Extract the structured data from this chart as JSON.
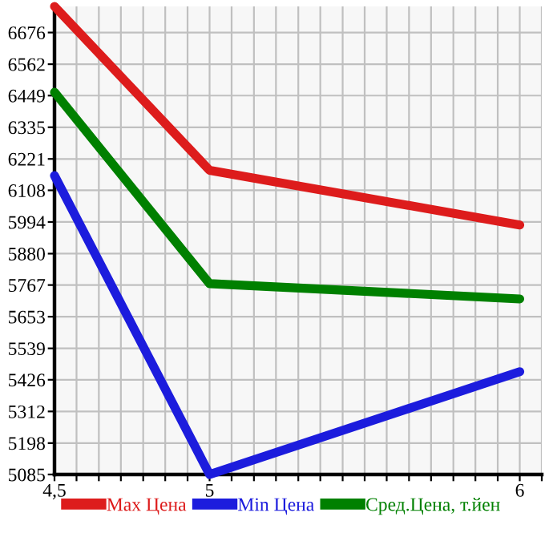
{
  "chart_data": {
    "type": "line",
    "x": [
      4.5,
      5,
      6
    ],
    "series": [
      {
        "name": "Max Цена",
        "color": "#dd1c1c",
        "values": [
          6770,
          6180,
          5983
        ]
      },
      {
        "name": "Min Цена",
        "color": "#1c1cdd",
        "values": [
          6161,
          5085,
          5455
        ]
      },
      {
        "name": "Сред.Цена, т.йен",
        "color": "#008000",
        "values": [
          6461,
          5772,
          5717
        ]
      }
    ],
    "xlim": [
      4.5,
      6.071
    ],
    "xticks": [
      {
        "value": 4.5,
        "label": "4,5"
      },
      {
        "value": 4.571,
        "label": null
      },
      {
        "value": 4.643,
        "label": null
      },
      {
        "value": 4.714,
        "label": null
      },
      {
        "value": 4.786,
        "label": null
      },
      {
        "value": 4.857,
        "label": null
      },
      {
        "value": 4.929,
        "label": null
      },
      5,
      {
        "value": 5.071,
        "label": null
      },
      {
        "value": 5.143,
        "label": null
      },
      {
        "value": 5.214,
        "label": null
      },
      {
        "value": 5.286,
        "label": null
      },
      {
        "value": 5.357,
        "label": null
      },
      {
        "value": 5.429,
        "label": null
      },
      {
        "value": 5.5,
        "label": null
      },
      {
        "value": 5.571,
        "label": null
      },
      {
        "value": 5.643,
        "label": null
      },
      {
        "value": 5.714,
        "label": null
      },
      {
        "value": 5.786,
        "label": null
      },
      {
        "value": 5.857,
        "label": null
      },
      {
        "value": 5.929,
        "label": null
      },
      6,
      {
        "value": 6.071,
        "label": null
      }
    ],
    "ylim": [
      5085,
      6770
    ],
    "yticks": [
      5085,
      5198,
      5312,
      5426,
      5539,
      5653,
      5767,
      5880,
      5994,
      6108,
      6221,
      6335,
      6449,
      6562,
      6676
    ],
    "grid": true,
    "legend": "bottom",
    "marker": "none",
    "line_style": "solid"
  }
}
